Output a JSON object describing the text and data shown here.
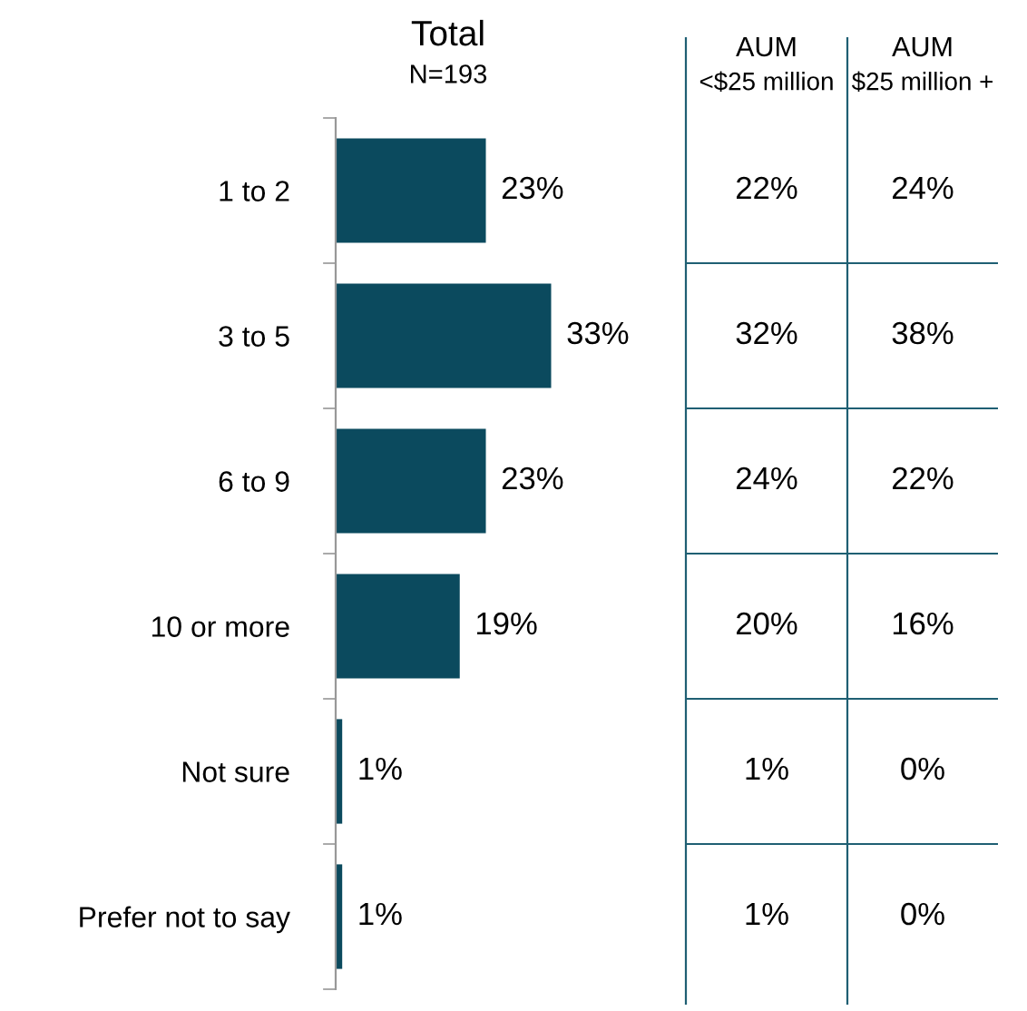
{
  "chart_data": [
    {
      "type": "bar",
      "orientation": "horizontal",
      "title": "Total",
      "subtitle": "N=193",
      "categories": [
        "1 to 2",
        "3 to 5",
        "6 to 9",
        "10 or more",
        "Not sure",
        "Prefer not to say"
      ],
      "series": [
        {
          "color": "#0b4a5e",
          "values": [
            23,
            33,
            23,
            19,
            1,
            1
          ],
          "value_labels": [
            "23%",
            "33%",
            "23%",
            "19%",
            "1%",
            "1%"
          ]
        }
      ]
    },
    {
      "type": "other",
      "title": "AUM",
      "subtitle": "<$25 million",
      "annotations": [
        "22%",
        "32%",
        "24%",
        "20%",
        "1%",
        "1%"
      ]
    },
    {
      "type": "other",
      "title": "AUM",
      "subtitle": "$25 million +",
      "annotations": [
        "24%",
        "38%",
        "22%",
        "16%",
        "0%",
        "0%"
      ]
    }
  ]
}
